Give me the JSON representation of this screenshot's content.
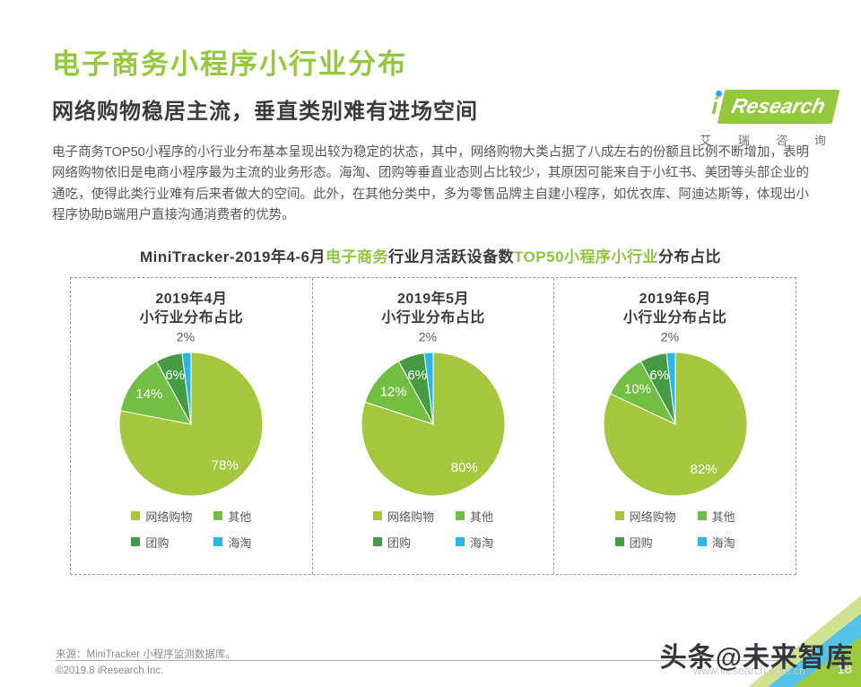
{
  "page": {
    "title": "电子商务小程序小行业分布",
    "subtitle": "网络购物稳居主流，垂直类别难有进场空间",
    "body_text": "电子商务TOP50小程序的小行业分布基本呈现出较为稳定的状态，其中，网络购物大类占据了八成左右的份额且比例不断增加，表明网络购物依旧是电商小程序最为主流的业务形态。海淘、团购等垂直业态则占比较少，其原因可能来自于小红书、美团等头部企业的通吃，使得此类行业难有后来者做大的空间。此外，在其他分类中，多为零售品牌主自建小程序，如优衣库、阿迪达斯等，体现出小程序协助B端用户直接沟通消费者的优势。",
    "page_number": "18"
  },
  "logo": {
    "brand_i": "i",
    "brand_name": "Research",
    "brand_cn": "艾 瑞 咨 询"
  },
  "chart_heading": {
    "segments": [
      {
        "text": "MiniTracker-2019年4-6月",
        "color": "#3e3a39"
      },
      {
        "text": "电子商务",
        "color": "#8fc640"
      },
      {
        "text": "行业月活跃设备数",
        "color": "#3e3a39"
      },
      {
        "text": "TOP50小程序小行业",
        "color": "#8fc640"
      },
      {
        "text": "分布占比",
        "color": "#3e3a39"
      }
    ]
  },
  "chart_data": [
    {
      "type": "pie",
      "title_line1": "2019年4月",
      "title_line2": "小行业分布占比",
      "categories": [
        "网络购物",
        "其他",
        "团购",
        "海淘"
      ],
      "values": [
        78,
        14,
        6,
        2
      ],
      "unit": "%",
      "legend_position": "bottom"
    },
    {
      "type": "pie",
      "title_line1": "2019年5月",
      "title_line2": "小行业分布占比",
      "categories": [
        "网络购物",
        "其他",
        "团购",
        "海淘"
      ],
      "values": [
        80,
        12,
        6,
        2
      ],
      "unit": "%",
      "legend_position": "bottom"
    },
    {
      "type": "pie",
      "title_line1": "2019年6月",
      "title_line2": "小行业分布占比",
      "categories": [
        "网络购物",
        "其他",
        "团购",
        "海淘"
      ],
      "values": [
        82,
        10,
        6,
        2
      ],
      "unit": "%",
      "legend_position": "bottom"
    }
  ],
  "legend": {
    "items": [
      {
        "label": "网络购物",
        "color": "#a5c73d"
      },
      {
        "label": "其他",
        "color": "#72bf44"
      },
      {
        "label": "团购",
        "color": "#459a44"
      },
      {
        "label": "海淘",
        "color": "#29b6e8"
      }
    ]
  },
  "footer": {
    "source": "来源：MiniTracker 小程序监测数据库。",
    "copyright": "©2019.8 iResearch Inc.",
    "website": "www.iresearch.com.cn",
    "watermark": "头条@未来智库"
  },
  "colors": {
    "brand_green": "#94c83d",
    "title_dark": "#3e3a39",
    "body_text": "#595757",
    "slice_colors": [
      "#a5c73d",
      "#72bf44",
      "#459a44",
      "#29b6e8"
    ],
    "logo_dot_blue": "#2ea7e0",
    "corner_light_green": "#cfe390",
    "corner_blue": "#54c3ea",
    "corner_green": "#9cca3c"
  }
}
